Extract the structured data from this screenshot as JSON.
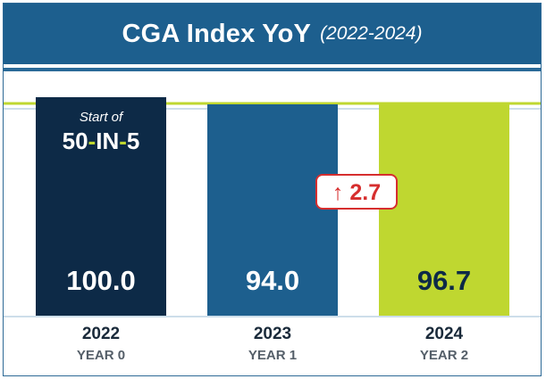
{
  "chart_data": {
    "type": "bar",
    "title": "CGA Index YoY",
    "subtitle": "(2022-2024)",
    "categories": [
      "2022",
      "2023",
      "2024"
    ],
    "sublabels": [
      "YEAR 0",
      "YEAR 1",
      "YEAR 2"
    ],
    "values": [
      100.0,
      94.0,
      96.7
    ],
    "value_labels": [
      "100.0",
      "94.0",
      "96.7"
    ],
    "colors": [
      "#0d2a47",
      "#1d5f8e",
      "#bfd730"
    ],
    "value_label_colors": [
      "#ffffff",
      "#ffffff",
      "#0d2a47"
    ],
    "baseline_value": 100,
    "baseline_color": "#bfd730",
    "start_badge": {
      "line1": "Start of",
      "line2_a": "50",
      "line2_b": "IN",
      "line2_c": "5",
      "accent": "#bfd730"
    },
    "change": {
      "arrow": "↑",
      "value": "2.7",
      "color": "#d62e2e"
    }
  }
}
